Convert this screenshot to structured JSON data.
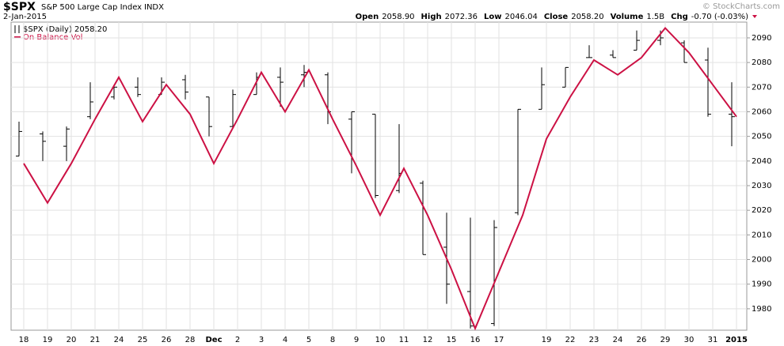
{
  "chart_data": {
    "type": "ohlc",
    "symbol": "$SPX",
    "name": "S&P 500 Large Cap Index",
    "exchange": "INDX",
    "date": "2-Jan-2015",
    "copyright": "© StockCharts.com",
    "stats": [
      {
        "label": "Open",
        "value": "2058.90"
      },
      {
        "label": "High",
        "value": "2072.36"
      },
      {
        "label": "Low",
        "value": "2046.04"
      },
      {
        "label": "Close",
        "value": "2058.20"
      },
      {
        "label": "Volume",
        "value": "1.5B"
      },
      {
        "label": "Chg",
        "value": "-0.70 (-0.03%)"
      }
    ],
    "legend": [
      "$SPX (Daily) 2058.20",
      "On Balance Vol"
    ],
    "categories": [
      "18",
      "19",
      "20",
      "21",
      "24",
      "25",
      "26",
      "28",
      "Dec",
      "2",
      "3",
      "4",
      "5",
      "8",
      "9",
      "10",
      "11",
      "12",
      "15",
      "16",
      "17",
      null,
      "19",
      "22",
      "23",
      "24",
      "26",
      "29",
      "30",
      "31",
      "2015"
    ],
    "open": [
      2042,
      2051,
      2046,
      2058,
      2066,
      2070,
      2067,
      2073,
      2066,
      2054,
      2067,
      2074,
      2075,
      2075,
      2057,
      2059,
      2028,
      2031,
      2005,
      1987,
      1974,
      2019,
      2061,
      2070,
      2082,
      2083,
      2085,
      2089,
      2088,
      2081,
      2059
    ],
    "high": [
      2056,
      2052,
      2054,
      2072,
      2071,
      2074,
      2074,
      2075,
      2066,
      2069,
      2076,
      2078,
      2079,
      2076,
      2060,
      2059,
      2055,
      2032,
      2019,
      2017,
      2016,
      2061,
      2078,
      2078,
      2087,
      2085,
      2093,
      2093,
      2089,
      2086,
      2072
    ],
    "low": [
      2042,
      2040,
      2040,
      2057,
      2065,
      2066,
      2067,
      2065,
      2050,
      2053,
      2067,
      2062,
      2070,
      2055,
      2035,
      2025,
      2027,
      2002,
      1982,
      1972,
      1973,
      2018,
      2061,
      2070,
      2082,
      2082,
      2085,
      2087,
      2080,
      2058,
      2046
    ],
    "close": [
      2052,
      2048,
      2053,
      2064,
      2070,
      2067,
      2072,
      2068,
      2054,
      2067,
      2074,
      2072,
      2076,
      2060,
      2060,
      2026,
      2035,
      2002,
      1990,
      1973,
      2013,
      2061,
      2071,
      2078,
      2082,
      2082,
      2089,
      2090,
      2080,
      2059,
      2058
    ],
    "color": "#000000",
    "series": [
      {
        "name": "On Balance Vol",
        "type": "line",
        "color": "#cc1144",
        "values": [
          2039,
          2023,
          2039,
          2057,
          2074,
          2056,
          2071,
          2059,
          2039,
          2057,
          2076,
          2060,
          2077,
          2057,
          2038,
          2018,
          2037,
          2018,
          1996,
          1972,
          1995,
          2018,
          2049,
          2066,
          2081,
          2075,
          2082,
          2094,
          2084,
          2071,
          2058
        ]
      }
    ],
    "ylim": [
      1971.3,
      2096.4
    ],
    "yticks": [
      1980,
      1990,
      2000,
      2010,
      2020,
      2030,
      2040,
      2050,
      2060,
      2070,
      2080,
      2090
    ],
    "grid": true
  }
}
